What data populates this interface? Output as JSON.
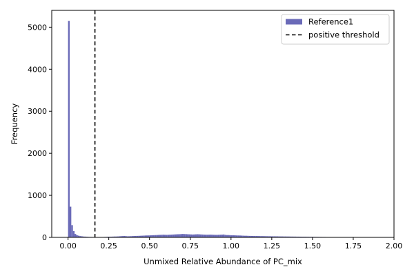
{
  "chart_data": {
    "type": "histogram",
    "xlabel": "Unmixed Relative Abundance of PC_mix",
    "ylabel": "Frequency",
    "xlim": [
      -0.1,
      2.0
    ],
    "ylim": [
      0,
      5400
    ],
    "x_ticks": [
      "0.00",
      "0.25",
      "0.50",
      "0.75",
      "1.00",
      "1.25",
      "1.50",
      "1.75",
      "2.00"
    ],
    "x_tick_values": [
      0,
      0.25,
      0.5,
      0.75,
      1.0,
      1.25,
      1.5,
      1.75,
      2.0
    ],
    "y_ticks": [
      "0",
      "1000",
      "2000",
      "3000",
      "4000",
      "5000"
    ],
    "y_tick_values": [
      0,
      1000,
      2000,
      3000,
      4000,
      5000
    ],
    "bin_width": 0.01,
    "series": [
      {
        "name": "Reference1",
        "color": "#6a6ab8",
        "bins_start": 0.0,
        "counts": [
          5150,
          730,
          290,
          150,
          80,
          50,
          40,
          30,
          25,
          20,
          18,
          15,
          12,
          10,
          10,
          8,
          8,
          6,
          5,
          5,
          5,
          8,
          10,
          12,
          14,
          15,
          16,
          18,
          20,
          20,
          22,
          25,
          28,
          30,
          32,
          30,
          25,
          26,
          28,
          30,
          32,
          34,
          35,
          36,
          38,
          40,
          42,
          44,
          45,
          46,
          48,
          50,
          52,
          54,
          55,
          58,
          60,
          62,
          64,
          62,
          60,
          62,
          64,
          66,
          68,
          70,
          72,
          74,
          75,
          78,
          80,
          78,
          76,
          74,
          72,
          70,
          68,
          70,
          72,
          74,
          72,
          70,
          68,
          66,
          65,
          64,
          65,
          66,
          64,
          62,
          60,
          60,
          62,
          64,
          66,
          68,
          60,
          55,
          55,
          52,
          50,
          50,
          48,
          46,
          45,
          44,
          42,
          40,
          38,
          38,
          36,
          35,
          34,
          33,
          32,
          32,
          31,
          30,
          30,
          29,
          28,
          28,
          27,
          26,
          26,
          25,
          25,
          24,
          24,
          23,
          22,
          22,
          21,
          21,
          20,
          20,
          19,
          19,
          18,
          18,
          17,
          17,
          16,
          16,
          15,
          15,
          14,
          14,
          13,
          13,
          12,
          12,
          11,
          11,
          10,
          10,
          9,
          9,
          8,
          8,
          8,
          7,
          7,
          7,
          6,
          6,
          6,
          5,
          5,
          5,
          5,
          4,
          4,
          4,
          4,
          3,
          3,
          3,
          3,
          3,
          2,
          2,
          2,
          2,
          2,
          2,
          1,
          1,
          1,
          1
        ]
      }
    ],
    "threshold": {
      "name": "positive threshold",
      "x": 0.165,
      "color": "#000000"
    },
    "legend": {
      "position": "top-right",
      "items": [
        {
          "label": "Reference1",
          "kind": "patch",
          "color": "#6a6ab8"
        },
        {
          "label": "positive threshold",
          "kind": "dashed-line",
          "color": "#000000"
        }
      ]
    },
    "grid": false
  }
}
